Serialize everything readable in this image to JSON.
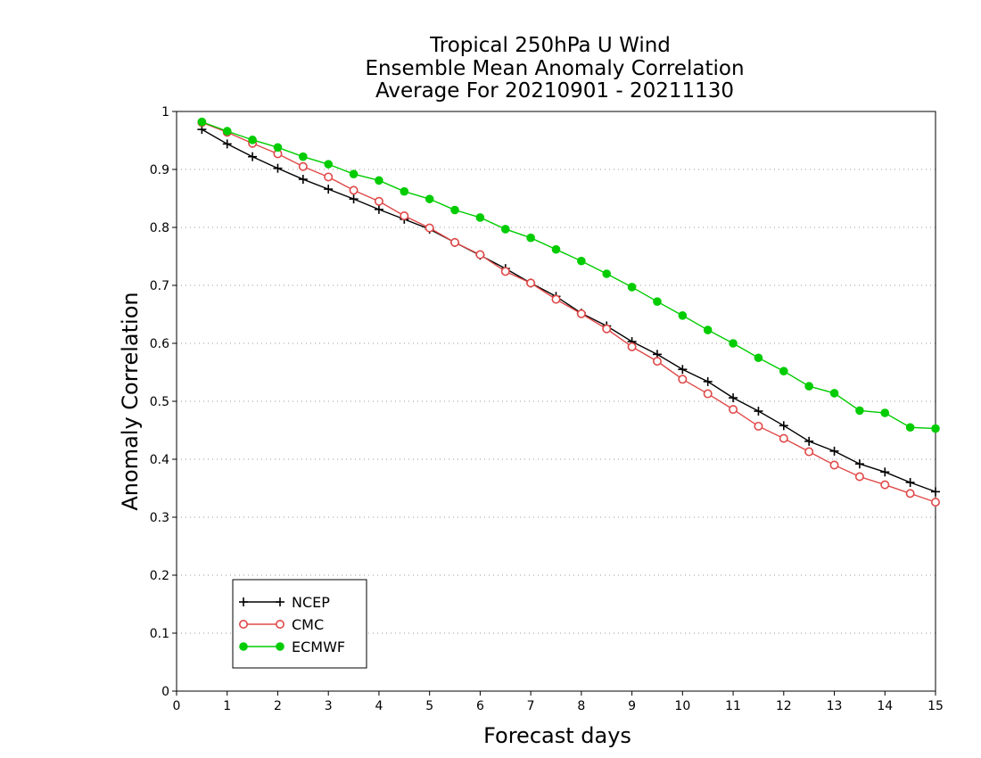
{
  "chart_data": {
    "type": "line",
    "title_lines": [
      "Tropical 250hPa U Wind",
      "Ensemble Mean Anomaly Correlation",
      "Average For 20210901 - 20211130"
    ],
    "xlabel": "Forecast days",
    "ylabel": "Anomaly Correlation",
    "xlim": [
      0,
      15
    ],
    "ylim": [
      0,
      1
    ],
    "x_ticks": [
      "0",
      "1",
      "2",
      "3",
      "4",
      "5",
      "6",
      "7",
      "8",
      "9",
      "10",
      "11",
      "12",
      "13",
      "14",
      "15"
    ],
    "y_ticks": [
      "0",
      "0.1",
      "0.2",
      "0.3",
      "0.4",
      "0.5",
      "0.6",
      "0.7",
      "0.8",
      "0.9",
      "1"
    ],
    "grid": "horizontal-dotted",
    "legend_position": "bottom-left",
    "x": [
      0.5,
      1,
      1.5,
      2,
      2.5,
      3,
      3.5,
      4,
      4.5,
      5,
      5.5,
      6,
      6.5,
      7,
      7.5,
      8,
      8.5,
      9,
      9.5,
      10,
      10.5,
      11,
      11.5,
      12,
      12.5,
      13,
      13.5,
      14,
      14.5,
      15
    ],
    "series": [
      {
        "name": "NCEP",
        "color": "#000000",
        "marker": "plus",
        "values": [
          0.969,
          0.944,
          0.922,
          0.902,
          0.883,
          0.866,
          0.849,
          0.831,
          0.814,
          0.797,
          0.774,
          0.752,
          0.729,
          0.704,
          0.681,
          0.652,
          0.63,
          0.603,
          0.581,
          0.555,
          0.534,
          0.506,
          0.483,
          0.458,
          0.431,
          0.414,
          0.392,
          0.378,
          0.36,
          0.344
        ]
      },
      {
        "name": "CMC",
        "color": "#e04848",
        "marker": "open-circle",
        "values": [
          0.981,
          0.964,
          0.945,
          0.927,
          0.905,
          0.887,
          0.864,
          0.845,
          0.82,
          0.799,
          0.774,
          0.753,
          0.724,
          0.704,
          0.676,
          0.651,
          0.625,
          0.594,
          0.569,
          0.538,
          0.513,
          0.486,
          0.457,
          0.436,
          0.413,
          0.39,
          0.37,
          0.356,
          0.341,
          0.326
        ]
      },
      {
        "name": "ECMWF",
        "color": "#00cc00",
        "marker": "filled-circle",
        "values": [
          0.982,
          0.966,
          0.951,
          0.938,
          0.922,
          0.909,
          0.892,
          0.881,
          0.862,
          0.849,
          0.83,
          0.817,
          0.797,
          0.782,
          0.762,
          0.742,
          0.72,
          0.697,
          0.672,
          0.648,
          0.623,
          0.6,
          0.575,
          0.552,
          0.526,
          0.514,
          0.484,
          0.48,
          0.455,
          0.453
        ]
      }
    ]
  }
}
